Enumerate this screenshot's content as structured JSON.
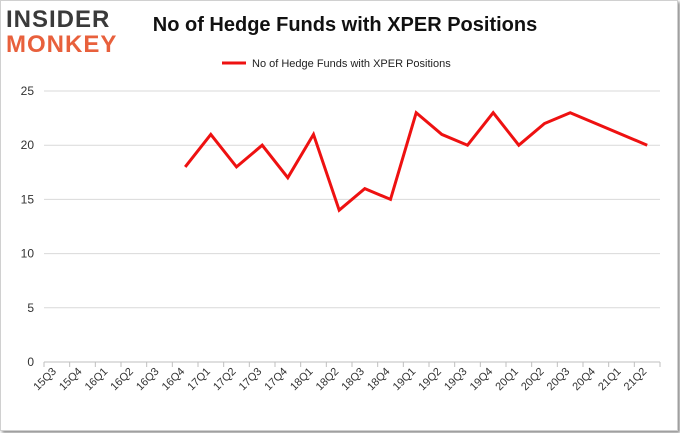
{
  "brand": {
    "line1": "INSIDER",
    "line2": "MONKEY"
  },
  "chart_data": {
    "type": "line",
    "title": "No of Hedge Funds with XPER Positions",
    "xlabel": "",
    "ylabel": "",
    "categories": [
      "15Q3",
      "15Q4",
      "16Q1",
      "16Q2",
      "16Q3",
      "16Q4",
      "17Q1",
      "17Q2",
      "17Q3",
      "17Q4",
      "18Q1",
      "18Q2",
      "18Q3",
      "18Q4",
      "19Q1",
      "19Q2",
      "19Q3",
      "19Q4",
      "20Q1",
      "20Q2",
      "20Q3",
      "20Q4",
      "21Q1",
      "21Q2"
    ],
    "series": [
      {
        "name": "No of Hedge Funds with XPER Positions",
        "values": [
          null,
          null,
          null,
          null,
          null,
          18,
          21,
          18,
          20,
          17,
          21,
          14,
          16,
          15,
          23,
          21,
          20,
          23,
          20,
          22,
          23,
          null,
          null,
          20
        ],
        "color": "#ee1111"
      }
    ],
    "ylim": [
      0,
      25
    ],
    "yticks": [
      0,
      5,
      10,
      15,
      20,
      25
    ],
    "grid": true,
    "legend": "top-center"
  }
}
